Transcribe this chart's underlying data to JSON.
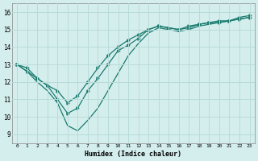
{
  "xlabel": "Humidex (Indice chaleur)",
  "xlim": [
    -0.5,
    23.5
  ],
  "ylim": [
    8.5,
    16.5
  ],
  "yticks": [
    9,
    10,
    11,
    12,
    13,
    14,
    15,
    16
  ],
  "xticks": [
    0,
    1,
    2,
    3,
    4,
    5,
    6,
    7,
    8,
    9,
    10,
    11,
    12,
    13,
    14,
    15,
    16,
    17,
    18,
    19,
    20,
    21,
    22,
    23
  ],
  "bg_color": "#d4eeed",
  "line_color": "#1a7a6e",
  "grid_color": "#b8dbd9",
  "series1_x": [
    0,
    1,
    2,
    3,
    4,
    5,
    6,
    7,
    8,
    9,
    10,
    11,
    12,
    13,
    14,
    15,
    16,
    17,
    18,
    19,
    20,
    21,
    22,
    23
  ],
  "series1_y": [
    13.0,
    12.6,
    12.2,
    11.8,
    11.5,
    10.8,
    11.2,
    12.0,
    12.8,
    13.5,
    14.0,
    14.4,
    14.7,
    15.0,
    15.2,
    15.1,
    15.0,
    15.1,
    15.3,
    15.4,
    15.4,
    15.5,
    15.6,
    15.7
  ],
  "series2_x": [
    0,
    1,
    2,
    3,
    4,
    5,
    6,
    7,
    8,
    9,
    10,
    11,
    12,
    13,
    14,
    15,
    16,
    17,
    18,
    19,
    20,
    21,
    22,
    23
  ],
  "series2_y": [
    13.0,
    12.8,
    12.2,
    11.8,
    11.0,
    10.2,
    10.5,
    11.5,
    12.2,
    13.0,
    13.8,
    14.1,
    14.5,
    15.0,
    15.2,
    15.1,
    15.0,
    15.2,
    15.3,
    15.4,
    15.5,
    15.5,
    15.7,
    15.8
  ],
  "series3_x": [
    0,
    1,
    2,
    3,
    4,
    5,
    6,
    7,
    8,
    9,
    10,
    11,
    12,
    13,
    14,
    15,
    16,
    17,
    18,
    19,
    20,
    21,
    22,
    23
  ],
  "series3_y": [
    13.0,
    12.6,
    12.0,
    11.5,
    10.8,
    9.5,
    9.2,
    9.8,
    10.5,
    11.5,
    12.5,
    13.5,
    14.2,
    14.8,
    15.1,
    15.0,
    14.9,
    15.0,
    15.2,
    15.3,
    15.4,
    15.5,
    15.6,
    15.7
  ]
}
